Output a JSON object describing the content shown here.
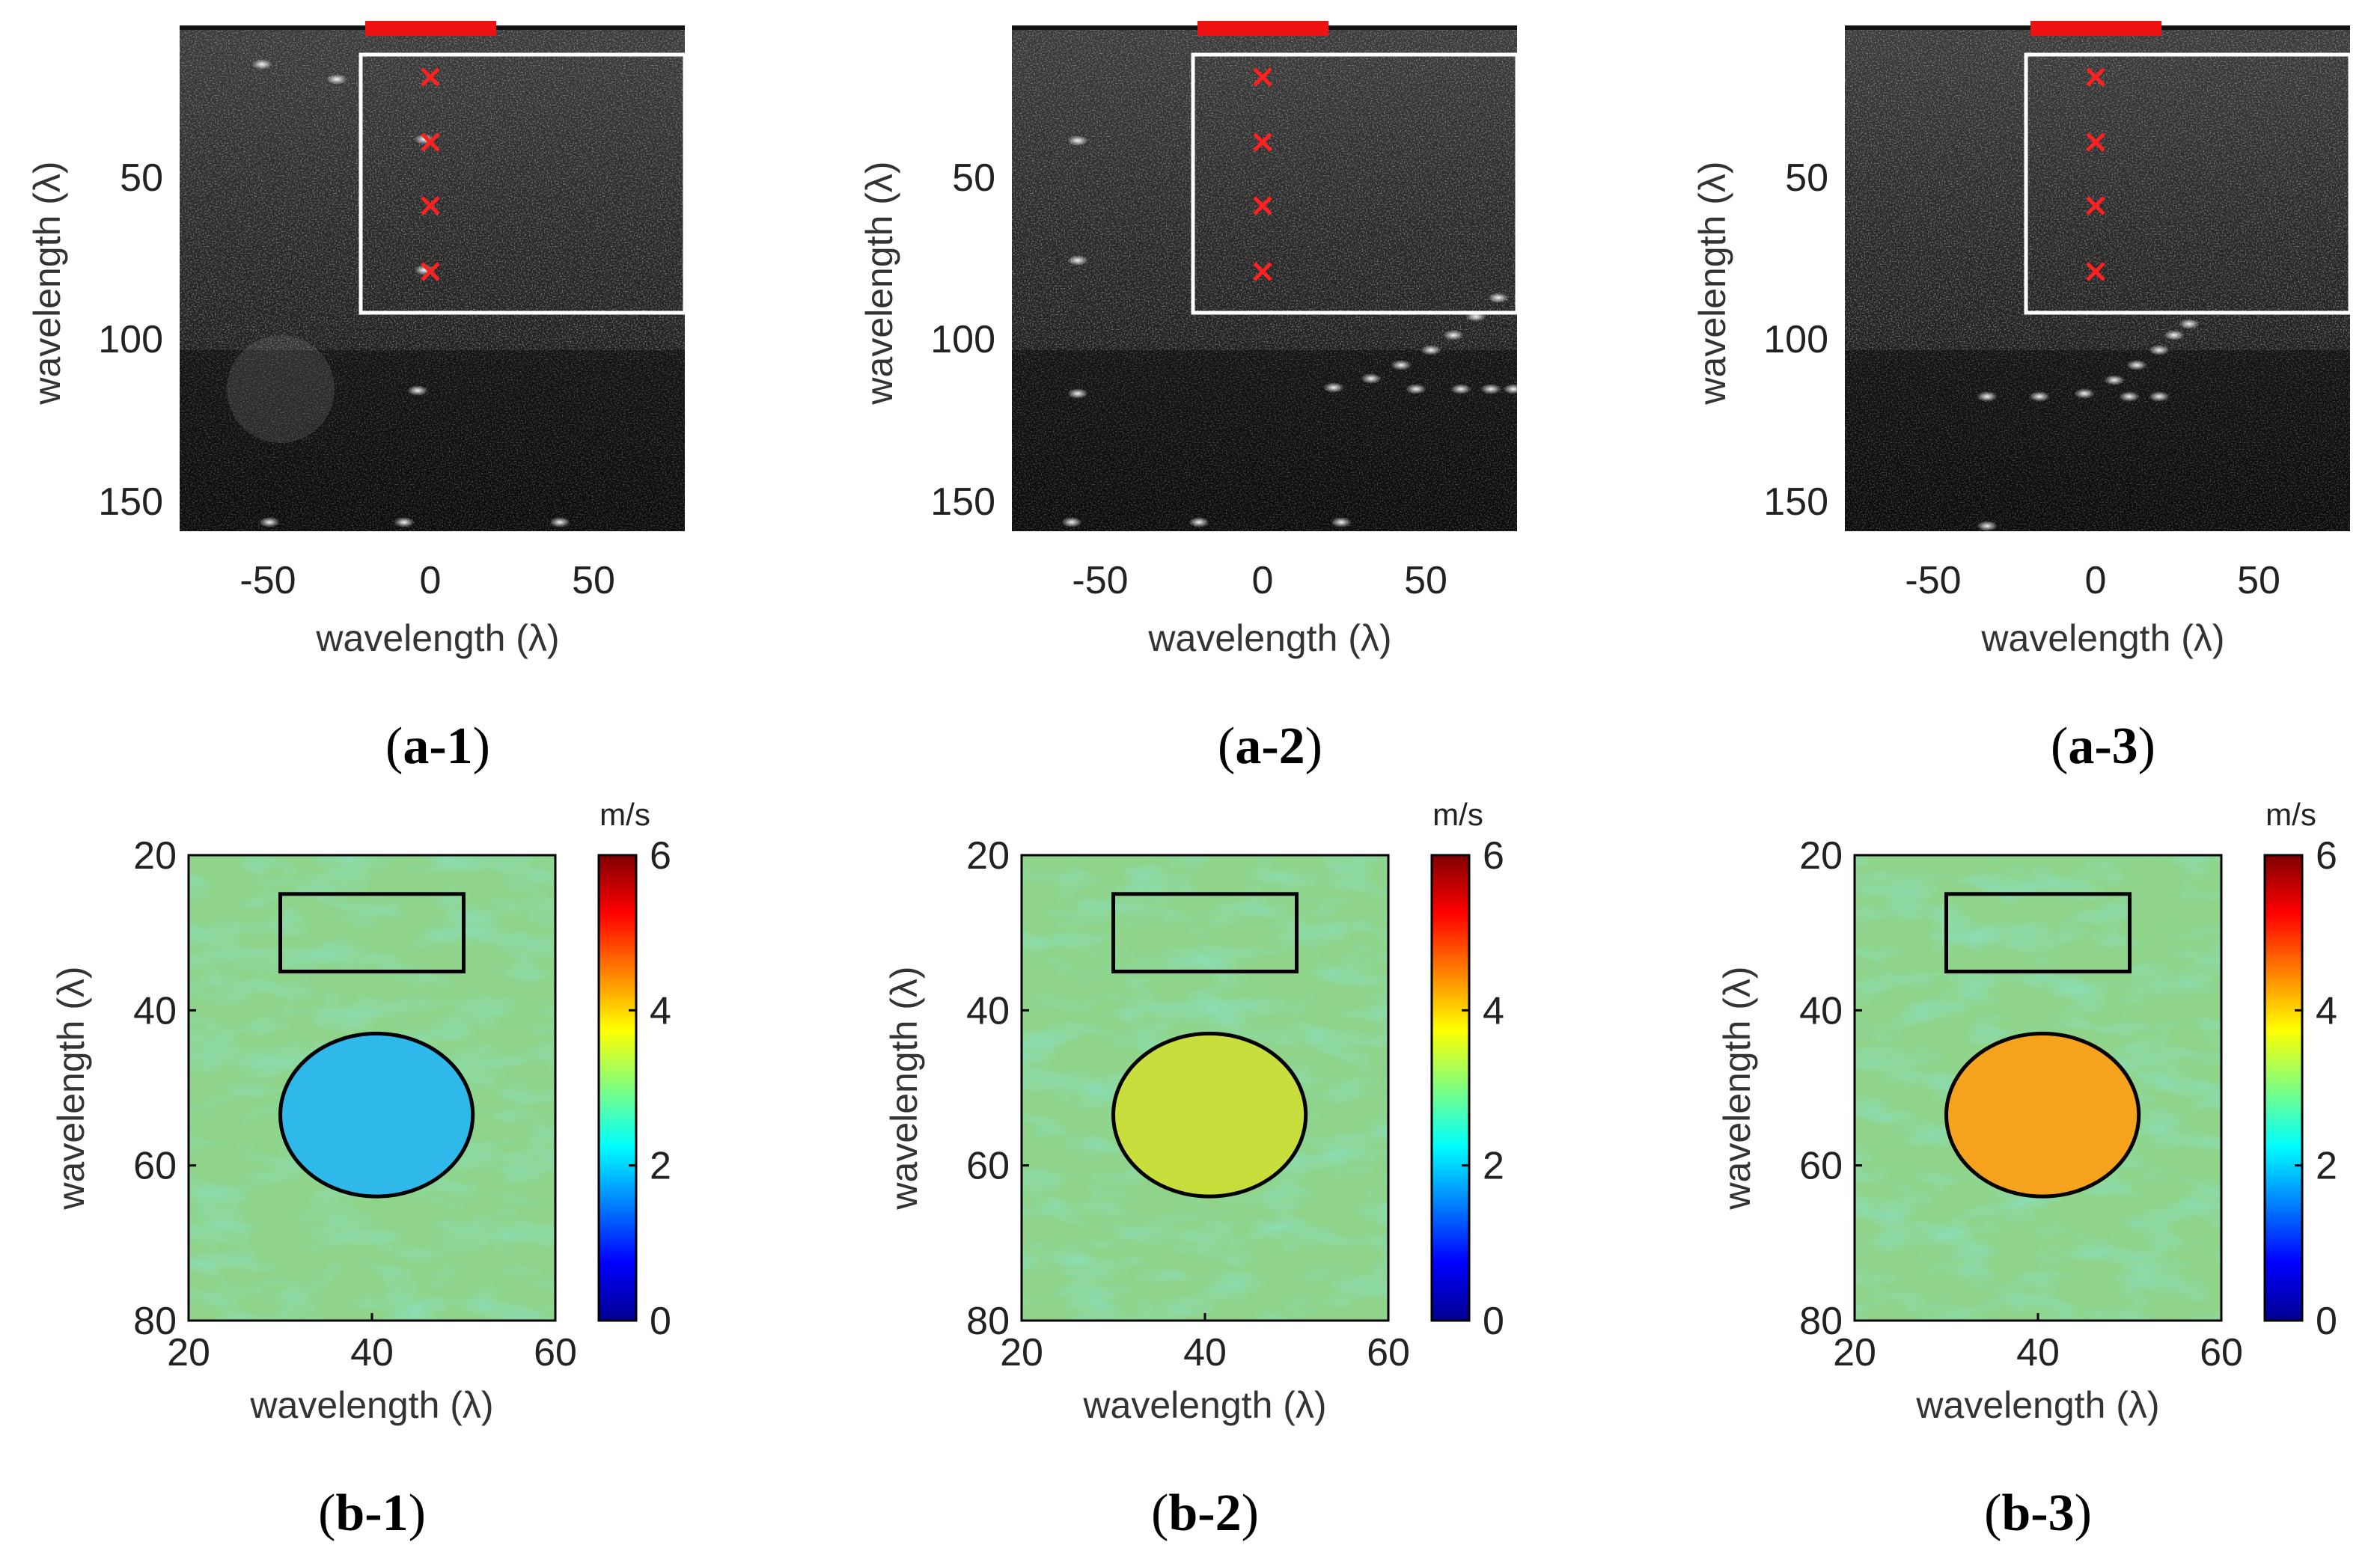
{
  "colors": {
    "marker": "#ff2020",
    "transducer": "#ee1111",
    "roi": "#ffffff",
    "background_map": "#8fd48a"
  },
  "bmode_panels": [
    {
      "id": "a-1",
      "caption_letter": "a",
      "caption_rest": "-1",
      "ylabel": "wavelength (λ)",
      "xlabel": "wavelength (λ)",
      "yticks": [
        "50",
        "100",
        "150"
      ],
      "xticks": [
        "-50",
        "0",
        "50"
      ]
    },
    {
      "id": "a-2",
      "caption_letter": "a",
      "caption_rest": "-2",
      "ylabel": "wavelength (λ)",
      "xlabel": "wavelength (λ)",
      "yticks": [
        "50",
        "100",
        "150"
      ],
      "xticks": [
        "-50",
        "0",
        "50"
      ]
    },
    {
      "id": "a-3",
      "caption_letter": "a",
      "caption_rest": "-3",
      "ylabel": "wavelength (λ)",
      "xlabel": "wavelength (λ)",
      "yticks": [
        "50",
        "100",
        "150"
      ],
      "xticks": [
        "-50",
        "0",
        "50"
      ]
    }
  ],
  "velocity_panels": [
    {
      "id": "b-1",
      "caption_letter": "b",
      "caption_rest": "-1",
      "ylabel": "wavelength (λ)",
      "xlabel": "wavelength (λ)",
      "yticks": [
        "20",
        "40",
        "60",
        "80"
      ],
      "xticks": [
        "20",
        "40",
        "60"
      ],
      "colorbar_unit": "m/s",
      "colorbar_ticks": [
        "6",
        "4",
        "2",
        "0"
      ],
      "inclusion_speed": 2.0,
      "inclusion_color": "#2fb8ea"
    },
    {
      "id": "b-2",
      "caption_letter": "b",
      "caption_rest": "-2",
      "ylabel": "wavelength (λ)",
      "xlabel": "wavelength (λ)",
      "yticks": [
        "20",
        "40",
        "60",
        "80"
      ],
      "xticks": [
        "20",
        "40",
        "60"
      ],
      "colorbar_unit": "m/s",
      "colorbar_ticks": [
        "6",
        "4",
        "2",
        "0"
      ],
      "inclusion_speed": 3.6,
      "inclusion_color": "#c8de3c"
    },
    {
      "id": "b-3",
      "caption_letter": "b",
      "caption_rest": "-3",
      "ylabel": "wavelength (λ)",
      "xlabel": "wavelength (λ)",
      "yticks": [
        "20",
        "40",
        "60",
        "80"
      ],
      "xticks": [
        "20",
        "40",
        "60"
      ],
      "colorbar_unit": "m/s",
      "colorbar_ticks": [
        "6",
        "4",
        "2",
        "0"
      ],
      "inclusion_speed": 4.6,
      "inclusion_color": "#f5a21d"
    }
  ]
}
